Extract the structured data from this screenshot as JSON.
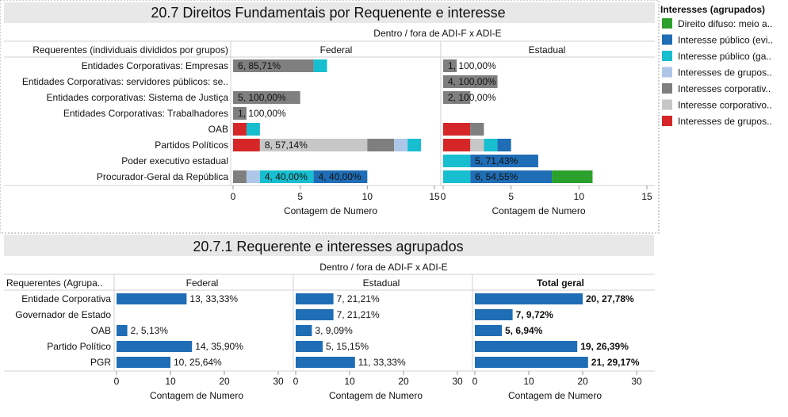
{
  "chart_data": [
    {
      "type": "bar",
      "stacked": true,
      "title": "20.7 Direitos Fundamentais por Requenente e interesse",
      "subtitle": "Dentro / fora de ADI-F x ADI-E",
      "row_header": "Requerentes (individuais divididos por grupos)",
      "categories": [
        "Entidades Corporativas: Empresas",
        "Entidades Corporativas: servidores públicos: se..",
        "Entidades corporativas: Sistema de Justiça",
        "Entidades Corporativas: Trabalhadores",
        "OAB",
        "Partidos Políticos",
        "Poder executivo estadual",
        "Procurador-Geral da República"
      ],
      "xlabel": "Contagem de Numero",
      "xlim": [
        0,
        15
      ],
      "xticks": [
        0,
        5,
        10,
        15
      ],
      "grid": false,
      "panels": [
        {
          "name": "Federal",
          "rows": [
            [
              {
                "k": 4,
                "v": 6,
                "label": "6, 85,71%"
              },
              {
                "k": 2,
                "v": 1
              }
            ],
            [],
            [
              {
                "k": 4,
                "v": 5,
                "label": "5, 100,00%"
              }
            ],
            [
              {
                "k": 4,
                "v": 1,
                "label": "1, 100,00%"
              }
            ],
            [
              {
                "k": 6,
                "v": 1
              },
              {
                "k": 2,
                "v": 1
              }
            ],
            [
              {
                "k": 6,
                "v": 2
              },
              {
                "k": 5,
                "v": 8,
                "label": "8, 57,14%"
              },
              {
                "k": 4,
                "v": 2
              },
              {
                "k": 3,
                "v": 1
              },
              {
                "k": 2,
                "v": 1
              }
            ],
            [],
            [
              {
                "k": 4,
                "v": 1
              },
              {
                "k": 3,
                "v": 1
              },
              {
                "k": 2,
                "v": 4,
                "label": "4, 40,00%"
              },
              {
                "k": 1,
                "v": 4,
                "label": "4, 40,00%"
              }
            ]
          ]
        },
        {
          "name": "Estadual",
          "rows": [
            [
              {
                "k": 4,
                "v": 1,
                "label": "1, 100,00%"
              }
            ],
            [
              {
                "k": 4,
                "v": 4,
                "label": "4, 100,00%"
              }
            ],
            [
              {
                "k": 4,
                "v": 2,
                "label": "2, 100,00%"
              }
            ],
            [],
            [
              {
                "k": 6,
                "v": 2
              },
              {
                "k": 4,
                "v": 1
              }
            ],
            [
              {
                "k": 6,
                "v": 2
              },
              {
                "k": 5,
                "v": 1
              },
              {
                "k": 2,
                "v": 1
              },
              {
                "k": 1,
                "v": 1
              }
            ],
            [
              {
                "k": 2,
                "v": 2
              },
              {
                "k": 1,
                "v": 5,
                "label": "5, 71,43%"
              }
            ],
            [
              {
                "k": 2,
                "v": 2
              },
              {
                "k": 1,
                "v": 6,
                "label": "6, 54,55%"
              },
              {
                "k": 0,
                "v": 3
              }
            ]
          ]
        }
      ],
      "legend": {
        "title": "Interesses (agrupados)",
        "placement": "right",
        "items": [
          {
            "name": "Direito difuso: meio a..",
            "color": "#2ca02c"
          },
          {
            "name": "Interesse público (evi..",
            "color": "#1f6db5"
          },
          {
            "name": "Interesse público (ga..",
            "color": "#17becf"
          },
          {
            "name": "Interesses de grupos..",
            "color": "#aec7e8"
          },
          {
            "name": "Interesses corporativ..",
            "color": "#7f7f7f"
          },
          {
            "name": "Interesse corporativo..",
            "color": "#c7c7c7"
          },
          {
            "name": "Interesses de grupos..",
            "color": "#d62728"
          }
        ]
      }
    },
    {
      "type": "bar",
      "title": "20.7.1 Requerente e interesses agrupados",
      "subtitle": "Dentro / fora de ADI-F x ADI-E",
      "row_header": "Requerentes (Agrupa..",
      "categories": [
        "Entidade Corporativa",
        "Governador de Estado",
        "OAB",
        "Partido Político",
        "PGR"
      ],
      "xlabel": "Contagem de Numero",
      "xlim": [
        0,
        30
      ],
      "xticks": [
        0,
        10,
        20,
        30
      ],
      "grid": false,
      "bar_color": "#1f6db5",
      "panels": [
        {
          "name": "Federal",
          "bold": false,
          "values": [
            13,
            0,
            2,
            14,
            10
          ],
          "labels": [
            "13, 33,33%",
            "",
            "2, 5,13%",
            "14, 35,90%",
            "10, 25,64%"
          ]
        },
        {
          "name": "Estadual",
          "bold": false,
          "values": [
            7,
            7,
            3,
            5,
            11
          ],
          "labels": [
            "7, 21,21%",
            "7, 21,21%",
            "3, 9,09%",
            "5, 15,15%",
            "11, 33,33%"
          ]
        },
        {
          "name": "Total geral",
          "bold": true,
          "values": [
            20,
            7,
            5,
            19,
            21
          ],
          "labels": [
            "20, 27,78%",
            "7, 9,72%",
            "5, 6,94%",
            "19, 26,39%",
            "21, 29,17%"
          ]
        }
      ]
    }
  ]
}
